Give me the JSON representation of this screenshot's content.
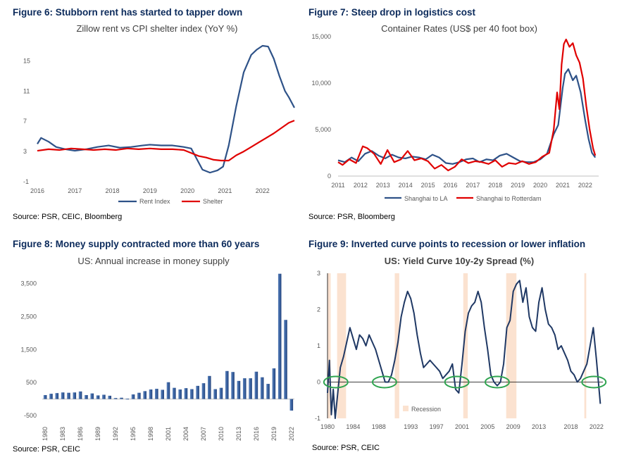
{
  "figures": [
    {
      "title": "Figure 6: Stubborn rent has started to tapper down",
      "source": "Source: PSR, CEIC, Bloomberg",
      "chart_data": {
        "type": "line",
        "title": "Zillow rent vs CPI shelter index (YoY %)",
        "xlim": [
          2016,
          2022.85
        ],
        "ylim": [
          -1,
          17
        ],
        "x_ticks": [
          "2016",
          "2017",
          "2018",
          "2019",
          "2020",
          "2021",
          "2022"
        ],
        "y_ticks": [
          "-1",
          "3",
          "7",
          "11",
          "15"
        ],
        "legend": "bottom",
        "series": [
          {
            "name": "Rent Index",
            "color": "#2e5288",
            "x": [
              2016,
              2016.1,
              2016.3,
              2016.5,
              2016.75,
              2017,
              2017.3,
              2017.6,
              2017.9,
              2018.2,
              2018.5,
              2018.8,
              2019,
              2019.3,
              2019.6,
              2019.9,
              2020.1,
              2020.25,
              2020.4,
              2020.6,
              2020.8,
              2020.95,
              2021.1,
              2021.3,
              2021.5,
              2021.7,
              2021.85,
              2022,
              2022.15,
              2022.3,
              2022.45,
              2022.6,
              2022.7,
              2022.85
            ],
            "y": [
              4.0,
              4.8,
              4.3,
              3.6,
              3.3,
              3.1,
              3.3,
              3.6,
              3.8,
              3.5,
              3.6,
              3.8,
              3.9,
              3.8,
              3.8,
              3.6,
              3.4,
              2.0,
              0.6,
              0.2,
              0.5,
              1.0,
              3.8,
              9.0,
              13.5,
              15.8,
              16.5,
              17.0,
              16.9,
              15.3,
              13.0,
              11.0,
              10.2,
              8.8
            ]
          },
          {
            "name": "Shelter",
            "color": "#e00000",
            "x": [
              2016,
              2016.3,
              2016.6,
              2016.9,
              2017.2,
              2017.5,
              2017.8,
              2018.1,
              2018.4,
              2018.7,
              2019,
              2019.3,
              2019.6,
              2019.9,
              2020.1,
              2020.3,
              2020.5,
              2020.7,
              2020.9,
              2021.1,
              2021.3,
              2021.5,
              2021.7,
              2021.9,
              2022.1,
              2022.3,
              2022.5,
              2022.7,
              2022.85
            ],
            "y": [
              3.1,
              3.3,
              3.2,
              3.4,
              3.3,
              3.2,
              3.3,
              3.2,
              3.4,
              3.3,
              3.4,
              3.3,
              3.3,
              3.2,
              2.8,
              2.4,
              2.2,
              1.9,
              1.8,
              1.8,
              2.5,
              3.0,
              3.6,
              4.2,
              4.8,
              5.4,
              6.1,
              6.8,
              7.1
            ]
          }
        ]
      }
    },
    {
      "title": "Figure 7: Steep drop in logistics cost",
      "source": "Source: PSR, Bloomberg",
      "chart_data": {
        "type": "line",
        "title": "Container Rates (US$ per 40 foot box)",
        "xlim": [
          2011,
          2022.6
        ],
        "ylim": [
          0,
          15000
        ],
        "x_ticks": [
          "2011",
          "2012",
          "2013",
          "2014",
          "2015",
          "2016",
          "2017",
          "2018",
          "2019",
          "2020",
          "2021",
          "2022"
        ],
        "y_ticks": [
          "0",
          "5,000",
          "10,000",
          "15,000"
        ],
        "legend": "bottom",
        "series": [
          {
            "name": "Shanghai to LA",
            "color": "#2e5288",
            "x": [
              2011,
              2011.3,
              2011.6,
              2011.9,
              2012.2,
              2012.5,
              2012.8,
              2013.1,
              2013.4,
              2013.7,
              2014,
              2014.3,
              2014.6,
              2014.9,
              2015.2,
              2015.5,
              2015.8,
              2016.1,
              2016.4,
              2016.7,
              2017,
              2017.3,
              2017.6,
              2017.9,
              2018.2,
              2018.5,
              2018.8,
              2019.1,
              2019.4,
              2019.7,
              2020,
              2020.3,
              2020.6,
              2020.8,
              2021,
              2021.1,
              2021.25,
              2021.45,
              2021.6,
              2021.8,
              2022,
              2022.15,
              2022.3,
              2022.45
            ],
            "y": [
              1700,
              1500,
              2000,
              1600,
              2400,
              2700,
              2200,
              1900,
              2300,
              2000,
              1900,
              2100,
              2000,
              1800,
              2300,
              2000,
              1400,
              1300,
              1500,
              1800,
              1900,
              1500,
              1800,
              1700,
              2200,
              2400,
              2000,
              1600,
              1500,
              1500,
              1800,
              2400,
              4500,
              5500,
              9500,
              11000,
              11500,
              10300,
              10800,
              9000,
              6000,
              4000,
              2500,
              2000
            ]
          },
          {
            "name": "Shanghai to Rotterdam",
            "color": "#e00000",
            "x": [
              2011,
              2011.2,
              2011.5,
              2011.8,
              2012.1,
              2012.3,
              2012.6,
              2012.9,
              2013.2,
              2013.5,
              2013.8,
              2014.1,
              2014.4,
              2014.7,
              2015,
              2015.3,
              2015.6,
              2015.9,
              2016.2,
              2016.5,
              2016.8,
              2017.1,
              2017.4,
              2017.7,
              2018,
              2018.3,
              2018.6,
              2018.9,
              2019.2,
              2019.5,
              2019.8,
              2020.1,
              2020.4,
              2020.6,
              2020.75,
              2020.85,
              2020.95,
              2021.05,
              2021.15,
              2021.3,
              2021.45,
              2021.6,
              2021.75,
              2021.9,
              2022.05,
              2022.2,
              2022.35,
              2022.45
            ],
            "y": [
              1500,
              1200,
              1800,
              1400,
              3200,
              3000,
              2400,
              1300,
              2800,
              1500,
              1800,
              2700,
              1700,
              1900,
              1600,
              800,
              1200,
              600,
              1000,
              1800,
              1400,
              1600,
              1500,
              1300,
              1700,
              1000,
              1400,
              1300,
              1600,
              1300,
              1500,
              2100,
              2500,
              5000,
              9000,
              7200,
              12000,
              14200,
              14700,
              13900,
              14300,
              13000,
              12200,
              10500,
              7500,
              5000,
              3000,
              2200
            ]
          }
        ]
      }
    },
    {
      "title": "Figure 8: Money supply contracted more than 60 years",
      "source": "Source: PSR, CEIC",
      "chart_data": {
        "type": "bar",
        "title": "US: Annual increase in money supply",
        "xlim": [
          1980,
          2022
        ],
        "ylim": [
          -500,
          3900
        ],
        "x_ticks": [
          "1980",
          "1983",
          "1986",
          "1989",
          "1992",
          "1995",
          "1998",
          "2001",
          "2004",
          "2007",
          "2010",
          "2013",
          "2016",
          "2019",
          "2022"
        ],
        "y_ticks": [
          "-500",
          "500",
          "1,500",
          "2,500",
          "3,500"
        ],
        "x": [
          1980,
          1981,
          1982,
          1983,
          1984,
          1985,
          1986,
          1987,
          1988,
          1989,
          1990,
          1991,
          1992,
          1993,
          1994,
          1995,
          1996,
          1997,
          1998,
          1999,
          2000,
          2001,
          2002,
          2003,
          2004,
          2005,
          2006,
          2007,
          2008,
          2009,
          2010,
          2011,
          2012,
          2013,
          2014,
          2015,
          2016,
          2017,
          2018,
          2019,
          2020,
          2021,
          2022
        ],
        "values": [
          120,
          160,
          180,
          200,
          190,
          200,
          230,
          120,
          170,
          110,
          130,
          100,
          30,
          40,
          10,
          140,
          190,
          240,
          290,
          310,
          280,
          510,
          340,
          290,
          330,
          300,
          400,
          480,
          700,
          300,
          340,
          850,
          820,
          550,
          630,
          630,
          830,
          660,
          460,
          930,
          3800,
          2400,
          -350
        ]
      }
    },
    {
      "title": "Figure 9:  Inverted curve points to recession or lower inflation",
      "source": "Source:  PSR, CEIC",
      "chart_data": {
        "type": "line",
        "title": "US: Yield Curve 10y-2y Spread (%)",
        "xlim": [
          1980,
          2023
        ],
        "ylim": [
          -1,
          3
        ],
        "x_ticks": [
          "1980",
          "1984",
          "1988",
          "1993",
          "1997",
          "2001",
          "2005",
          "2009",
          "2013",
          "2018",
          "2022"
        ],
        "y_ticks": [
          "-1",
          "0",
          "1",
          "2",
          "3"
        ],
        "legend_label": "Recession",
        "recessions": [
          [
            1980.0,
            1980.5
          ],
          [
            1981.5,
            1982.9
          ],
          [
            1990.5,
            1991.2
          ],
          [
            2001.2,
            2001.9
          ],
          [
            2007.9,
            2009.5
          ],
          [
            2020.1,
            2020.4
          ]
        ],
        "highlight_x": [
          1981.3,
          1988.9,
          2000.2,
          2006.5,
          2021.6
        ],
        "series": [
          {
            "name": "Spread",
            "color": "#1f3864",
            "x": [
              1980,
              1980.3,
              1980.6,
              1980.9,
              1981.2,
              1981.6,
              1982,
              1982.5,
              1983,
              1983.5,
              1984,
              1984.5,
              1985,
              1985.5,
              1986,
              1986.5,
              1987,
              1987.5,
              1988,
              1988.5,
              1989,
              1989.5,
              1990,
              1990.5,
              1991,
              1991.5,
              1992,
              1992.5,
              1993,
              1993.5,
              1994,
              1994.5,
              1995,
              1995.5,
              1996,
              1996.5,
              1997,
              1997.5,
              1998,
              1998.5,
              1999,
              1999.5,
              2000,
              2000.5,
              2001,
              2001.5,
              2002,
              2002.5,
              2003,
              2003.5,
              2004,
              2004.5,
              2005,
              2005.5,
              2006,
              2006.5,
              2007,
              2007.5,
              2008,
              2008.5,
              2009,
              2009.5,
              2010,
              2010.5,
              2011,
              2011.5,
              2012,
              2012.5,
              2013,
              2013.5,
              2014,
              2014.5,
              2015,
              2015.5,
              2016,
              2016.5,
              2017,
              2017.5,
              2018,
              2018.5,
              2019,
              2019.5,
              2020,
              2020.5,
              2021,
              2021.5,
              2022,
              2022.3,
              2022.6
            ],
            "y": [
              -0.3,
              0.6,
              -0.9,
              -0.2,
              -1.0,
              -0.3,
              0.4,
              0.7,
              1.1,
              1.5,
              1.2,
              0.9,
              1.3,
              1.2,
              1.0,
              1.3,
              1.1,
              0.9,
              0.6,
              0.3,
              0.0,
              0.0,
              0.2,
              0.6,
              1.1,
              1.8,
              2.2,
              2.5,
              2.3,
              1.9,
              1.3,
              0.8,
              0.4,
              0.5,
              0.6,
              0.5,
              0.4,
              0.3,
              0.1,
              0.2,
              0.3,
              0.5,
              -0.2,
              -0.3,
              0.5,
              1.4,
              1.9,
              2.1,
              2.2,
              2.5,
              2.2,
              1.5,
              0.9,
              0.2,
              0.0,
              -0.1,
              0.0,
              0.5,
              1.5,
              1.7,
              2.5,
              2.7,
              2.8,
              2.2,
              2.6,
              1.8,
              1.5,
              1.4,
              2.2,
              2.6,
              2.0,
              1.6,
              1.5,
              1.3,
              0.9,
              1.0,
              0.8,
              0.6,
              0.3,
              0.2,
              0.0,
              0.1,
              0.3,
              0.5,
              1.0,
              1.5,
              0.6,
              0.0,
              -0.6
            ]
          }
        ]
      }
    }
  ]
}
